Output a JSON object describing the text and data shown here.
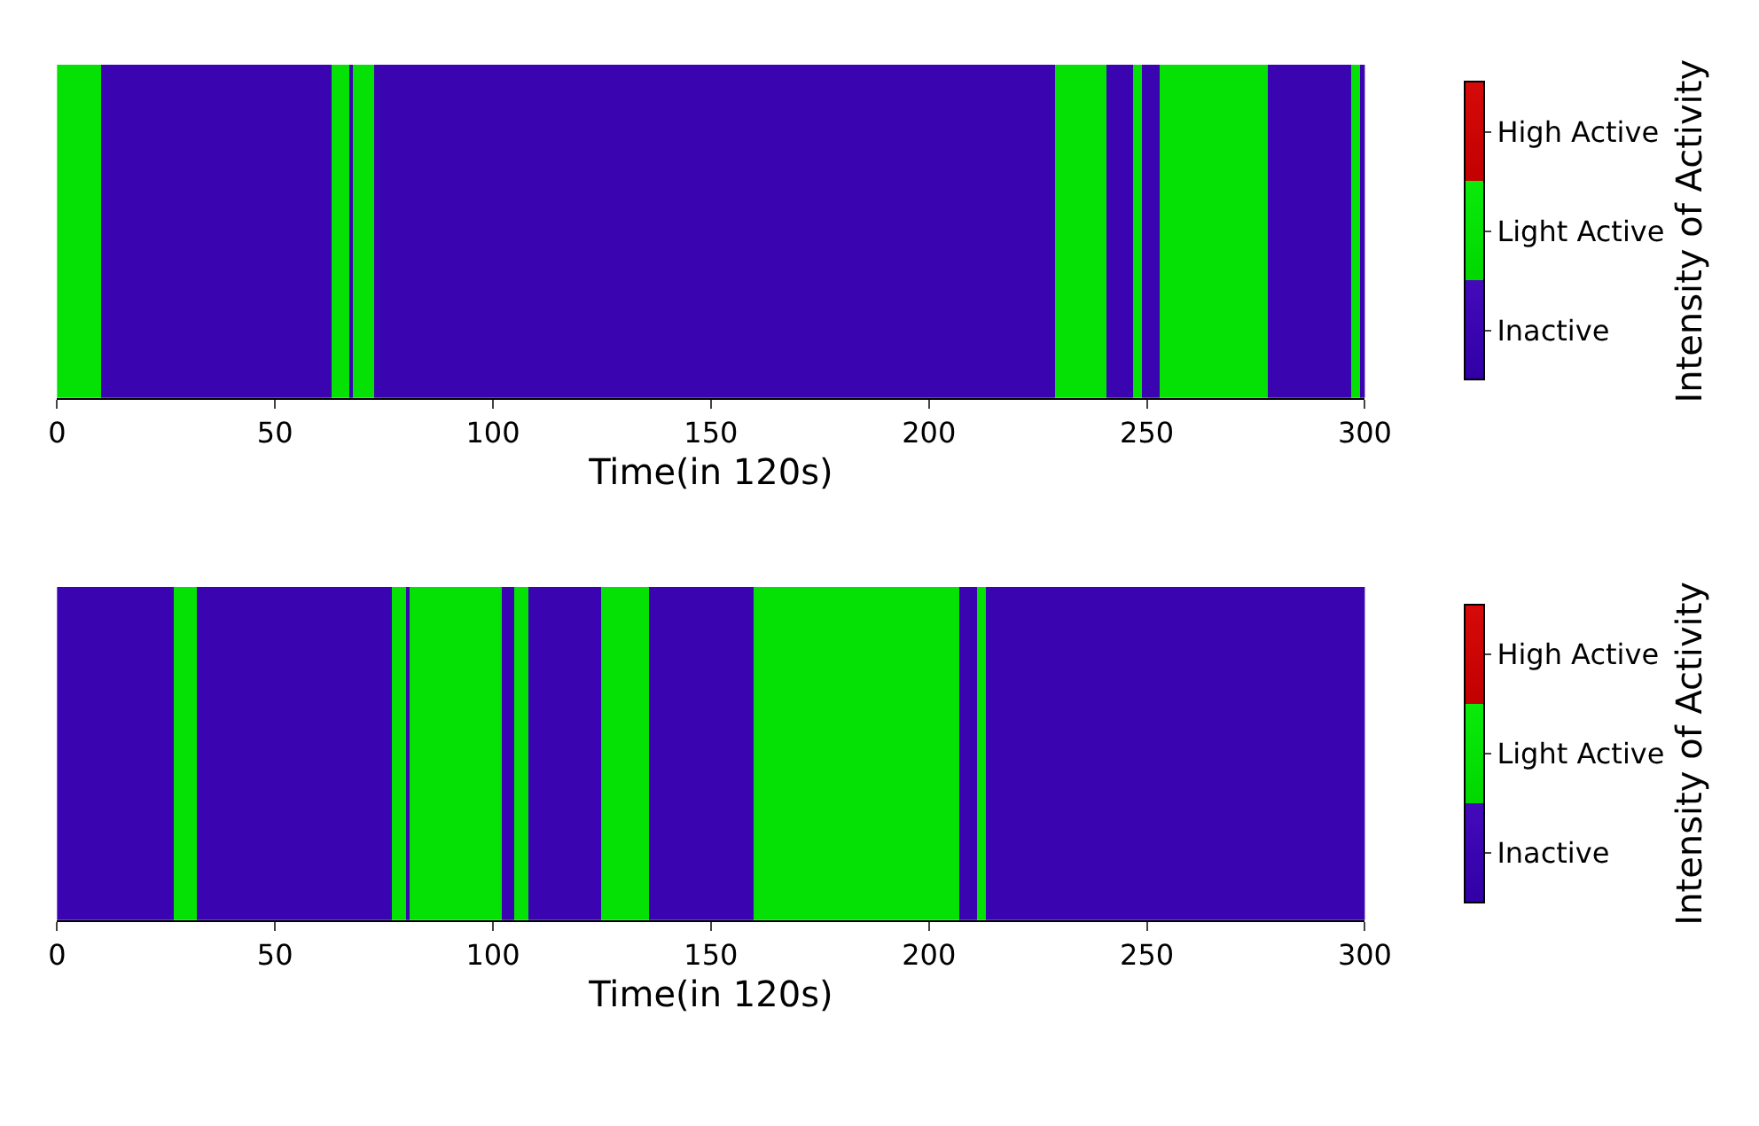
{
  "chart_data": [
    {
      "type": "heatmap",
      "xlabel": "Time(in 120s)",
      "clabel": "Intensity of Activity",
      "tick_labels": "x",
      "x": [
        0.5,
        1.5,
        2.5,
        3.5,
        4.5,
        5.5,
        6.5,
        7.5,
        8.5,
        9.5,
        10.5,
        11.5,
        12.5,
        13.5,
        14.5,
        15.5,
        16.5,
        17.5,
        18.5,
        19.5,
        20.5,
        21.5,
        22.5,
        23.5,
        24.5,
        25.5,
        26.5,
        27.5,
        28.5,
        29.5,
        30.5,
        31.5,
        32.5,
        33.5,
        34.5,
        35.5,
        36.5,
        37.5,
        38.5,
        39.5,
        40.5,
        41.5,
        42.5,
        43.5,
        44.5,
        45.5,
        46.5,
        47.5,
        48.5,
        49.5,
        50.5,
        51.5,
        52.5,
        53.5,
        54.5,
        55.5,
        56.5,
        57.5,
        58.5,
        59.5,
        60.5,
        61.5,
        62.5,
        63.5,
        64.5,
        65.5,
        66.5,
        67.5,
        68.5,
        69.5,
        70.5,
        71.5,
        72.5,
        73.5,
        74.5,
        75.5,
        76.5,
        77.5,
        78.5,
        79.5,
        80.5,
        81.5,
        82.5,
        83.5,
        84.5,
        85.5,
        86.5,
        87.5,
        88.5,
        89.5,
        90.5,
        91.5,
        92.5,
        93.5,
        94.5,
        95.5,
        96.5,
        97.5,
        98.5,
        99.5,
        100.5,
        101.5,
        102.5,
        103.5,
        104.5,
        105.5,
        106.5,
        107.5,
        108.5,
        109.5,
        110.5,
        111.5,
        112.5,
        113.5,
        114.5,
        115.5,
        116.5,
        117.5,
        118.5,
        119.5,
        120.5,
        121.5,
        122.5,
        123.5,
        124.5,
        125.5,
        126.5,
        127.5,
        128.5,
        129.5,
        130.5,
        131.5,
        132.5,
        133.5,
        134.5,
        135.5,
        136.5,
        137.5,
        138.5,
        139.5,
        140.5,
        141.5,
        142.5,
        143.5,
        144.5,
        145.5,
        146.5,
        147.5,
        148.5,
        149.5,
        150.5,
        151.5,
        152.5,
        153.5,
        154.5,
        155.5,
        156.5,
        157.5,
        158.5,
        159.5,
        160.5,
        161.5,
        162.5,
        163.5,
        164.5,
        165.5,
        166.5,
        167.5,
        168.5,
        169.5,
        170.5,
        171.5,
        172.5,
        173.5,
        174.5,
        175.5,
        176.5,
        177.5,
        178.5,
        179.5,
        180.5,
        181.5,
        182.5,
        183.5,
        184.5,
        185.5,
        186.5,
        187.5,
        188.5,
        189.5,
        190.5,
        191.5,
        192.5,
        193.5,
        194.5,
        195.5,
        196.5,
        197.5,
        198.5,
        199.5,
        200.5,
        201.5,
        202.5,
        203.5,
        204.5,
        205.5,
        206.5,
        207.5,
        208.5,
        209.5,
        210.5,
        211.5,
        212.5,
        213.5,
        214.5,
        215.5,
        216.5,
        217.5,
        218.5,
        219.5,
        220.5,
        221.5,
        222.5,
        223.5,
        224.5,
        225.5,
        226.5,
        227.5,
        228.5,
        229.5,
        230.5,
        231.5,
        232.5,
        233.5,
        234.5,
        235.5,
        236.5,
        237.5,
        238.5,
        239.5,
        240.5,
        241.5,
        242.5,
        243.5,
        244.5,
        245.5,
        246.5,
        247.5,
        248.5,
        249.5,
        250.5,
        251.5,
        252.5,
        253.5,
        254.5,
        255.5,
        256.5,
        257.5,
        258.5,
        259.5,
        260.5,
        261.5,
        262.5,
        263.5,
        264.5,
        265.5,
        266.5,
        267.5,
        268.5,
        269.5,
        270.5,
        271.5,
        272.5,
        273.5,
        274.5,
        275.5,
        276.5,
        277.5,
        278.5,
        279.5,
        280.5,
        281.5,
        282.5,
        283.5,
        284.5,
        285.5,
        286.5,
        287.5,
        288.5,
        289.5,
        290.5,
        291.5,
        292.5,
        293.5,
        294.5,
        295.5,
        296.5,
        297.5,
        298.5,
        299.5
      ],
      "y_categories": [
        null
      ],
      "cells": [
        [
          1,
          1,
          1,
          1,
          1,
          1,
          1,
          1,
          1,
          1,
          0,
          0,
          0,
          0,
          0,
          0,
          0,
          0,
          0,
          0,
          0,
          0,
          0,
          0,
          0,
          0,
          0,
          0,
          0,
          0,
          0,
          0,
          0,
          0,
          0,
          0,
          0,
          0,
          0,
          0,
          0,
          0,
          0,
          0,
          0,
          0,
          0,
          0,
          0,
          0,
          0,
          0,
          0,
          0,
          0,
          0,
          0,
          0,
          0,
          0,
          0,
          0,
          0,
          1,
          1,
          1,
          1,
          0,
          1,
          1,
          1,
          1,
          1,
          0,
          0,
          0,
          0,
          0,
          0,
          0,
          0,
          0,
          0,
          0,
          0,
          0,
          0,
          0,
          0,
          0,
          0,
          0,
          0,
          0,
          0,
          0,
          0,
          0,
          0,
          0,
          0,
          0,
          0,
          0,
          0,
          0,
          0,
          0,
          0,
          0,
          0,
          0,
          0,
          0,
          0,
          0,
          0,
          0,
          0,
          0,
          0,
          0,
          0,
          0,
          0,
          0,
          0,
          0,
          0,
          0,
          0,
          0,
          0,
          0,
          0,
          0,
          0,
          0,
          0,
          0,
          0,
          0,
          0,
          0,
          0,
          0,
          0,
          0,
          0,
          0,
          0,
          0,
          0,
          0,
          0,
          0,
          0,
          0,
          0,
          0,
          0,
          0,
          0,
          0,
          0,
          0,
          0,
          0,
          0,
          0,
          0,
          0,
          0,
          0,
          0,
          0,
          0,
          0,
          0,
          0,
          0,
          0,
          0,
          0,
          0,
          0,
          0,
          0,
          0,
          0,
          0,
          0,
          0,
          0,
          0,
          0,
          0,
          0,
          0,
          0,
          0,
          0,
          0,
          0,
          0,
          0,
          0,
          0,
          0,
          0,
          0,
          0,
          0,
          0,
          0,
          0,
          0,
          0,
          0,
          0,
          0,
          0,
          0,
          0,
          0,
          0,
          0,
          0,
          0,
          1,
          1,
          1,
          1,
          1,
          1,
          1,
          1,
          1,
          1,
          1,
          1,
          0,
          0,
          0,
          0,
          0,
          0,
          1,
          1,
          0,
          0,
          0,
          0,
          1,
          1,
          1,
          1,
          1,
          1,
          1,
          1,
          1,
          1,
          1,
          1,
          1,
          1,
          1,
          1,
          1,
          1,
          1,
          1,
          1,
          1,
          1,
          1,
          1,
          0,
          0,
          0,
          0,
          0,
          0,
          0,
          0,
          0,
          0,
          0,
          0,
          0,
          0,
          0,
          0,
          0,
          0,
          0,
          1,
          1,
          0
        ]
      ],
      "colors": [
        "#3a00b0",
        "#00e100",
        "#cc0000"
      ],
      "clim": [
        -0.5,
        2.5
      ],
      "cticks": [
        {
          "value": 0,
          "label": "Inactive"
        },
        {
          "value": 1,
          "label": "Light Active"
        },
        {
          "value": 2,
          "label": "High Active"
        }
      ],
      "xlim": [
        0,
        300
      ],
      "xticks": [
        0,
        50,
        100,
        150,
        200,
        250,
        300
      ]
    },
    {
      "type": "heatmap",
      "xlabel": "Time(in 120s)",
      "clabel": "Intensity of Activity",
      "tick_labels": "x",
      "x": [
        0.5,
        1.5,
        2.5,
        3.5,
        4.5,
        5.5,
        6.5,
        7.5,
        8.5,
        9.5,
        10.5,
        11.5,
        12.5,
        13.5,
        14.5,
        15.5,
        16.5,
        17.5,
        18.5,
        19.5,
        20.5,
        21.5,
        22.5,
        23.5,
        24.5,
        25.5,
        26.5,
        27.5,
        28.5,
        29.5,
        30.5,
        31.5,
        32.5,
        33.5,
        34.5,
        35.5,
        36.5,
        37.5,
        38.5,
        39.5,
        40.5,
        41.5,
        42.5,
        43.5,
        44.5,
        45.5,
        46.5,
        47.5,
        48.5,
        49.5,
        50.5,
        51.5,
        52.5,
        53.5,
        54.5,
        55.5,
        56.5,
        57.5,
        58.5,
        59.5,
        60.5,
        61.5,
        62.5,
        63.5,
        64.5,
        65.5,
        66.5,
        67.5,
        68.5,
        69.5,
        70.5,
        71.5,
        72.5,
        73.5,
        74.5,
        75.5,
        76.5,
        77.5,
        78.5,
        79.5,
        80.5,
        81.5,
        82.5,
        83.5,
        84.5,
        85.5,
        86.5,
        87.5,
        88.5,
        89.5,
        90.5,
        91.5,
        92.5,
        93.5,
        94.5,
        95.5,
        96.5,
        97.5,
        98.5,
        99.5,
        100.5,
        101.5,
        102.5,
        103.5,
        104.5,
        105.5,
        106.5,
        107.5,
        108.5,
        109.5,
        110.5,
        111.5,
        112.5,
        113.5,
        114.5,
        115.5,
        116.5,
        117.5,
        118.5,
        119.5,
        120.5,
        121.5,
        122.5,
        123.5,
        124.5,
        125.5,
        126.5,
        127.5,
        128.5,
        129.5,
        130.5,
        131.5,
        132.5,
        133.5,
        134.5,
        135.5,
        136.5,
        137.5,
        138.5,
        139.5,
        140.5,
        141.5,
        142.5,
        143.5,
        144.5,
        145.5,
        146.5,
        147.5,
        148.5,
        149.5,
        150.5,
        151.5,
        152.5,
        153.5,
        154.5,
        155.5,
        156.5,
        157.5,
        158.5,
        159.5,
        160.5,
        161.5,
        162.5,
        163.5,
        164.5,
        165.5,
        166.5,
        167.5,
        168.5,
        169.5,
        170.5,
        171.5,
        172.5,
        173.5,
        174.5,
        175.5,
        176.5,
        177.5,
        178.5,
        179.5,
        180.5,
        181.5,
        182.5,
        183.5,
        184.5,
        185.5,
        186.5,
        187.5,
        188.5,
        189.5,
        190.5,
        191.5,
        192.5,
        193.5,
        194.5,
        195.5,
        196.5,
        197.5,
        198.5,
        199.5,
        200.5,
        201.5,
        202.5,
        203.5,
        204.5,
        205.5,
        206.5,
        207.5,
        208.5,
        209.5,
        210.5,
        211.5,
        212.5,
        213.5,
        214.5,
        215.5,
        216.5,
        217.5,
        218.5,
        219.5,
        220.5,
        221.5,
        222.5,
        223.5,
        224.5,
        225.5,
        226.5,
        227.5,
        228.5,
        229.5,
        230.5,
        231.5,
        232.5,
        233.5,
        234.5,
        235.5,
        236.5,
        237.5,
        238.5,
        239.5,
        240.5,
        241.5,
        242.5,
        243.5,
        244.5,
        245.5,
        246.5,
        247.5,
        248.5,
        249.5,
        250.5,
        251.5,
        252.5,
        253.5,
        254.5,
        255.5,
        256.5,
        257.5,
        258.5,
        259.5,
        260.5,
        261.5,
        262.5,
        263.5,
        264.5,
        265.5,
        266.5,
        267.5,
        268.5,
        269.5,
        270.5,
        271.5,
        272.5,
        273.5,
        274.5,
        275.5,
        276.5,
        277.5,
        278.5,
        279.5,
        280.5,
        281.5,
        282.5,
        283.5,
        284.5,
        285.5,
        286.5,
        287.5,
        288.5,
        289.5,
        290.5,
        291.5,
        292.5,
        293.5,
        294.5,
        295.5,
        296.5,
        297.5,
        298.5,
        299.5
      ],
      "y_categories": [
        null
      ],
      "cells": [
        [
          0,
          0,
          0,
          0,
          0,
          0,
          0,
          0,
          0,
          0,
          0,
          0,
          0,
          0,
          0,
          0,
          0,
          0,
          0,
          0,
          0,
          0,
          0,
          0,
          0,
          0,
          0,
          1,
          1,
          1,
          1,
          1,
          0,
          0,
          0,
          0,
          0,
          0,
          0,
          0,
          0,
          0,
          0,
          0,
          0,
          0,
          0,
          0,
          0,
          0,
          0,
          0,
          0,
          0,
          0,
          0,
          0,
          0,
          0,
          0,
          0,
          0,
          0,
          0,
          0,
          0,
          0,
          0,
          0,
          0,
          0,
          0,
          0,
          0,
          0,
          0,
          0,
          1,
          1,
          1,
          0,
          1,
          1,
          1,
          1,
          1,
          1,
          1,
          1,
          1,
          1,
          1,
          1,
          1,
          1,
          1,
          1,
          1,
          1,
          1,
          1,
          1,
          0,
          0,
          0,
          1,
          1,
          1,
          0,
          0,
          0,
          0,
          0,
          0,
          0,
          0,
          0,
          0,
          0,
          0,
          0,
          0,
          0,
          0,
          0,
          1,
          1,
          1,
          1,
          1,
          1,
          1,
          1,
          1,
          1,
          1,
          0,
          0,
          0,
          0,
          0,
          0,
          0,
          0,
          0,
          0,
          0,
          0,
          0,
          0,
          0,
          0,
          0,
          0,
          0,
          0,
          0,
          0,
          0,
          0,
          1,
          1,
          1,
          1,
          1,
          1,
          1,
          1,
          1,
          1,
          1,
          1,
          1,
          1,
          1,
          1,
          1,
          1,
          1,
          1,
          1,
          1,
          1,
          1,
          1,
          1,
          1,
          1,
          1,
          1,
          1,
          1,
          1,
          1,
          1,
          1,
          1,
          1,
          1,
          1,
          1,
          1,
          1,
          1,
          1,
          1,
          1,
          0,
          0,
          0,
          0,
          1,
          1,
          0,
          0,
          0,
          0,
          0,
          0,
          0,
          0,
          0,
          0,
          0,
          0,
          0,
          0,
          0,
          0,
          0,
          0,
          0,
          0,
          0,
          0,
          0,
          0,
          0,
          0,
          0,
          0,
          0,
          0,
          0,
          0,
          0,
          0,
          0,
          0,
          0,
          0,
          0,
          0,
          0,
          0,
          0,
          0,
          0,
          0,
          0,
          0,
          0,
          0,
          0,
          0,
          0,
          0,
          0,
          0,
          0,
          0,
          0,
          0,
          0,
          0,
          0,
          0,
          0,
          0,
          0,
          0,
          0,
          0,
          0,
          0,
          0,
          0,
          0,
          0,
          0,
          0,
          0,
          0,
          0,
          0,
          0,
          0,
          0,
          0,
          0
        ]
      ],
      "colors": [
        "#3a00b0",
        "#00e100",
        "#cc0000"
      ],
      "clim": [
        -0.5,
        2.5
      ],
      "cticks": [
        {
          "value": 0,
          "label": "Inactive"
        },
        {
          "value": 1,
          "label": "Light Active"
        },
        {
          "value": 2,
          "label": "High Active"
        }
      ],
      "xlim": [
        0,
        300
      ],
      "xticks": [
        0,
        50,
        100,
        150,
        200,
        250,
        300
      ]
    }
  ]
}
